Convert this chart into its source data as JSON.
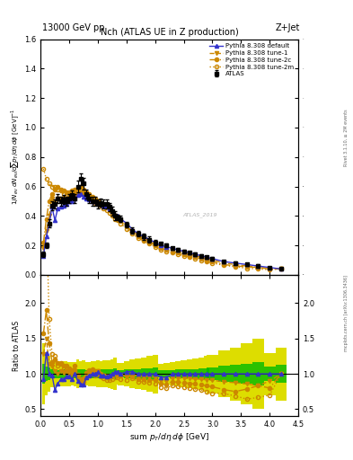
{
  "title": "Nch (ATLAS UE in Z production)",
  "top_left_label": "13000 GeV pp",
  "top_right_label": "Z+Jet",
  "watermark": "ATLAS_2019",
  "xlabel": "sum p_{T}/d\\eta d\\phi [GeV]",
  "ylabel": "1/N_{ev} dN_{ev}/dsum p_{T}/d\\eta d\\phi  [GeV]^{-1}",
  "ratio_ylabel": "Ratio to ATLAS",
  "right_label_top": "Rivet 3.1.10, ≥ 2M events",
  "right_label_bot": "mcplots.cern.ch [arXiv:1306.3436]",
  "main_ylim": [
    0.0,
    1.6
  ],
  "ratio_ylim": [
    0.4,
    2.4
  ],
  "xlim": [
    0.0,
    4.5
  ],
  "atlas_x": [
    0.05,
    0.1,
    0.15,
    0.2,
    0.25,
    0.3,
    0.35,
    0.4,
    0.45,
    0.5,
    0.55,
    0.6,
    0.65,
    0.7,
    0.75,
    0.8,
    0.85,
    0.9,
    0.95,
    1.0,
    1.05,
    1.1,
    1.15,
    1.2,
    1.25,
    1.3,
    1.35,
    1.4,
    1.5,
    1.6,
    1.7,
    1.8,
    1.9,
    2.0,
    2.1,
    2.2,
    2.3,
    2.4,
    2.5,
    2.6,
    2.7,
    2.8,
    2.9,
    3.0,
    3.2,
    3.4,
    3.6,
    3.8,
    4.0,
    4.2
  ],
  "atlas_y": [
    0.14,
    0.2,
    0.35,
    0.47,
    0.48,
    0.52,
    0.5,
    0.51,
    0.5,
    0.52,
    0.54,
    0.52,
    0.6,
    0.65,
    0.62,
    0.55,
    0.52,
    0.5,
    0.5,
    0.48,
    0.49,
    0.48,
    0.48,
    0.46,
    0.43,
    0.4,
    0.39,
    0.38,
    0.34,
    0.3,
    0.28,
    0.26,
    0.24,
    0.22,
    0.21,
    0.2,
    0.18,
    0.17,
    0.16,
    0.15,
    0.14,
    0.13,
    0.12,
    0.11,
    0.09,
    0.08,
    0.07,
    0.06,
    0.05,
    0.04
  ],
  "atlas_yerr": [
    0.02,
    0.02,
    0.03,
    0.03,
    0.03,
    0.03,
    0.03,
    0.03,
    0.03,
    0.03,
    0.03,
    0.03,
    0.04,
    0.04,
    0.04,
    0.03,
    0.03,
    0.03,
    0.03,
    0.03,
    0.03,
    0.03,
    0.03,
    0.03,
    0.03,
    0.03,
    0.02,
    0.02,
    0.02,
    0.02,
    0.02,
    0.02,
    0.02,
    0.02,
    0.01,
    0.01,
    0.01,
    0.01,
    0.01,
    0.01,
    0.01,
    0.01,
    0.01,
    0.01,
    0.01,
    0.01,
    0.01,
    0.01,
    0.005,
    0.005
  ],
  "py_def_y": [
    0.13,
    0.26,
    0.35,
    0.46,
    0.37,
    0.45,
    0.46,
    0.47,
    0.48,
    0.5,
    0.5,
    0.52,
    0.54,
    0.55,
    0.53,
    0.52,
    0.51,
    0.5,
    0.5,
    0.49,
    0.48,
    0.47,
    0.46,
    0.45,
    0.43,
    0.41,
    0.4,
    0.38,
    0.35,
    0.31,
    0.28,
    0.26,
    0.24,
    0.22,
    0.2,
    0.19,
    0.18,
    0.17,
    0.16,
    0.15,
    0.14,
    0.13,
    0.12,
    0.11,
    0.09,
    0.08,
    0.07,
    0.06,
    0.05,
    0.04
  ],
  "tune1_y": [
    0.18,
    0.3,
    0.4,
    0.52,
    0.5,
    0.52,
    0.52,
    0.52,
    0.52,
    0.53,
    0.54,
    0.54,
    0.55,
    0.56,
    0.55,
    0.53,
    0.52,
    0.51,
    0.5,
    0.5,
    0.48,
    0.47,
    0.46,
    0.44,
    0.42,
    0.4,
    0.39,
    0.37,
    0.33,
    0.3,
    0.27,
    0.25,
    0.23,
    0.21,
    0.19,
    0.18,
    0.17,
    0.16,
    0.15,
    0.14,
    0.13,
    0.12,
    0.11,
    0.1,
    0.08,
    0.07,
    0.06,
    0.05,
    0.045,
    0.04
  ],
  "tune2c_y": [
    0.22,
    0.38,
    0.5,
    0.55,
    0.58,
    0.6,
    0.58,
    0.57,
    0.56,
    0.56,
    0.57,
    0.58,
    0.59,
    0.6,
    0.58,
    0.56,
    0.55,
    0.53,
    0.52,
    0.5,
    0.49,
    0.47,
    0.46,
    0.44,
    0.42,
    0.4,
    0.38,
    0.37,
    0.33,
    0.29,
    0.26,
    0.24,
    0.22,
    0.2,
    0.18,
    0.17,
    0.16,
    0.15,
    0.14,
    0.13,
    0.12,
    0.11,
    0.1,
    0.09,
    0.07,
    0.06,
    0.055,
    0.05,
    0.04,
    0.04
  ],
  "tune2m_y": [
    0.72,
    0.65,
    0.62,
    0.6,
    0.6,
    0.58,
    0.57,
    0.55,
    0.54,
    0.53,
    0.53,
    0.55,
    0.56,
    0.57,
    0.55,
    0.53,
    0.52,
    0.5,
    0.49,
    0.48,
    0.47,
    0.45,
    0.44,
    0.42,
    0.4,
    0.38,
    0.37,
    0.35,
    0.31,
    0.28,
    0.25,
    0.23,
    0.21,
    0.19,
    0.17,
    0.16,
    0.15,
    0.14,
    0.13,
    0.12,
    0.11,
    0.1,
    0.09,
    0.08,
    0.065,
    0.055,
    0.045,
    0.04,
    0.035,
    0.04
  ],
  "color_default": "#3333cc",
  "color_tune": "#cc8800",
  "color_green": "#00bb00",
  "color_yellow": "#dddd00",
  "ratio_yticks": [
    0.5,
    1.0,
    1.5,
    2.0
  ],
  "main_yticks": [
    0.0,
    0.2,
    0.4,
    0.6,
    0.8,
    1.0,
    1.2,
    1.4,
    1.6
  ]
}
